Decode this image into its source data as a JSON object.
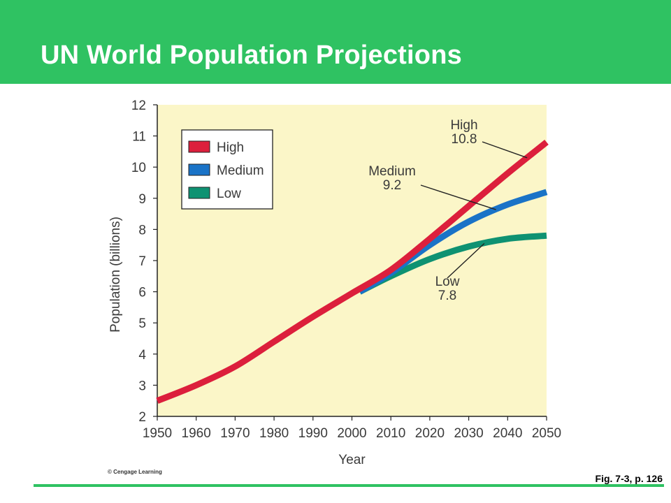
{
  "slide": {
    "title": "UN World Population Projections",
    "caption": "Fig. 7-3, p. 126",
    "copyright": "© Cengage Learning"
  },
  "colors": {
    "header": "#2fc262",
    "plot_background": "#fbf6c8",
    "high": "#dc1f3c",
    "medium": "#1a73c7",
    "low": "#0e9272"
  },
  "chart_data": {
    "type": "line",
    "title": "",
    "xlabel": "Year",
    "ylabel": "Population (billions)",
    "xlim": [
      1950,
      2050
    ],
    "ylim": [
      2,
      12
    ],
    "xticks": [
      1950,
      1960,
      1970,
      1980,
      1990,
      2000,
      2010,
      2020,
      2030,
      2040,
      2050
    ],
    "yticks": [
      2,
      3,
      4,
      5,
      6,
      7,
      8,
      9,
      10,
      11,
      12
    ],
    "grid": false,
    "legend_position": "top-left",
    "legend": [
      "High",
      "Medium",
      "Low"
    ],
    "series": [
      {
        "name": "High",
        "x": [
          1950,
          1960,
          1970,
          1980,
          1990,
          2000,
          2010,
          2020,
          2030,
          2040,
          2050
        ],
        "y": [
          2.5,
          3.0,
          3.6,
          4.4,
          5.2,
          5.95,
          6.7,
          7.7,
          8.75,
          9.8,
          10.8
        ]
      },
      {
        "name": "Medium",
        "x": [
          2002,
          2010,
          2020,
          2030,
          2040,
          2050
        ],
        "y": [
          6.0,
          6.6,
          7.5,
          8.25,
          8.8,
          9.2
        ]
      },
      {
        "name": "Low",
        "x": [
          2002,
          2010,
          2020,
          2030,
          2040,
          2050
        ],
        "y": [
          6.0,
          6.5,
          7.05,
          7.45,
          7.7,
          7.8
        ]
      }
    ],
    "annotations": [
      {
        "series": "High",
        "label": "High",
        "value": "10.8",
        "at_x": 2045
      },
      {
        "series": "Medium",
        "label": "Medium",
        "value": "9.2",
        "at_x": 2037
      },
      {
        "series": "Low",
        "label": "Low",
        "value": "7.8",
        "at_x": 2034
      }
    ]
  }
}
